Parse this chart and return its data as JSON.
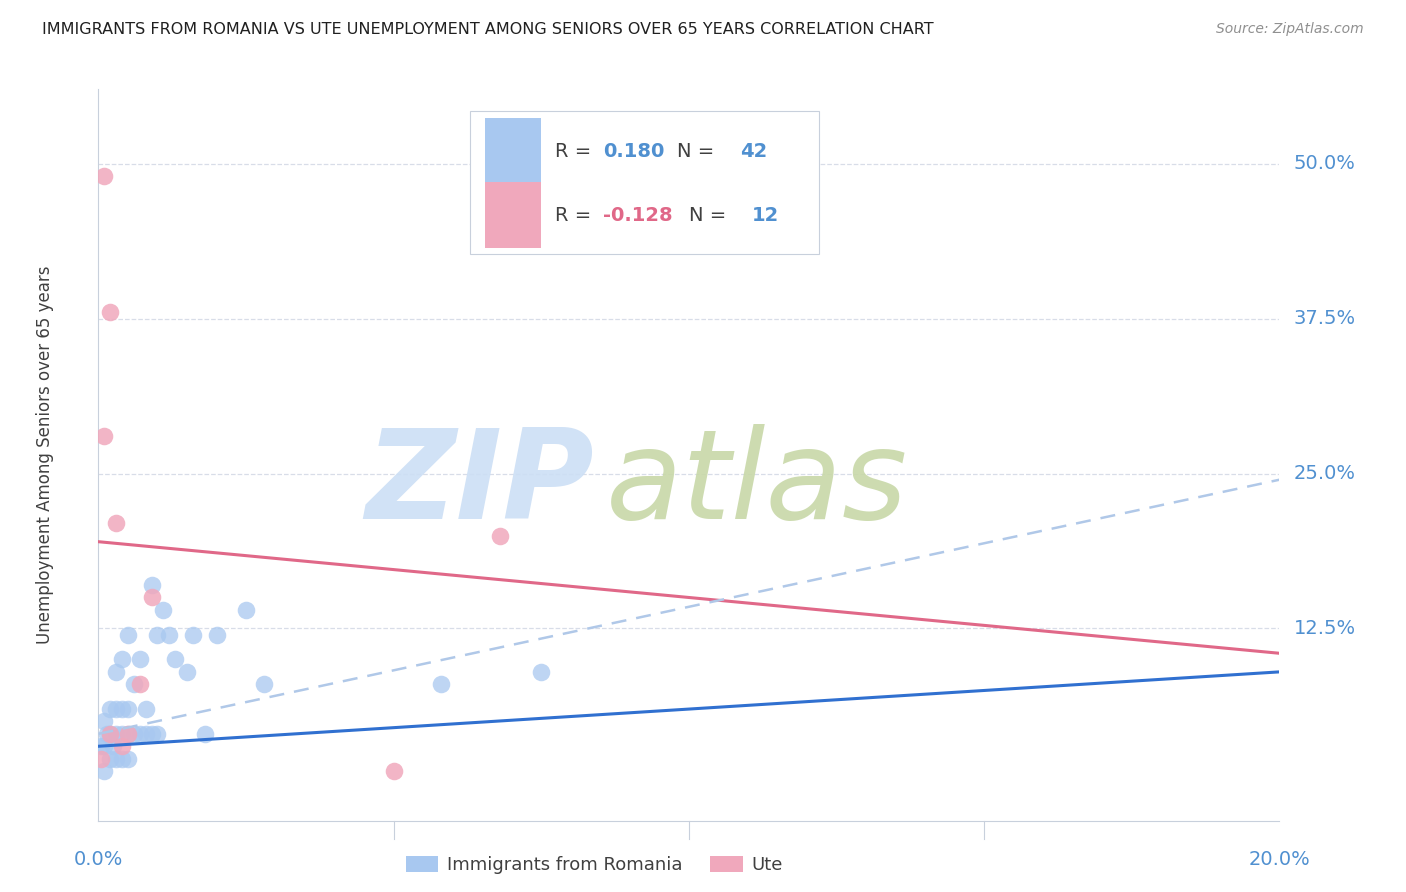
{
  "title": "IMMIGRANTS FROM ROMANIA VS UTE UNEMPLOYMENT AMONG SENIORS OVER 65 YEARS CORRELATION CHART",
  "source": "Source: ZipAtlas.com",
  "ylabel": "Unemployment Among Seniors over 65 years",
  "ytick_labels": [
    "50.0%",
    "37.5%",
    "25.0%",
    "12.5%"
  ],
  "ytick_values": [
    0.5,
    0.375,
    0.25,
    0.125
  ],
  "xmin": 0.0,
  "xmax": 0.2,
  "ymin": -0.03,
  "ymax": 0.56,
  "legend_romania_R": "0.180",
  "legend_romania_N": "42",
  "legend_ute_R": "-0.128",
  "legend_ute_N": "12",
  "color_romania": "#a8c8f0",
  "color_ute": "#f0a8bc",
  "color_romania_line": "#3070d0",
  "color_ute_line": "#e06888",
  "color_trendline_dashed": "#b0c8e8",
  "color_axis_labels": "#5090d0",
  "color_title": "#202020",
  "color_grid": "#d8dde8",
  "romania_scatter_x": [
    0.0005,
    0.001,
    0.001,
    0.001,
    0.0015,
    0.002,
    0.002,
    0.002,
    0.0025,
    0.003,
    0.003,
    0.003,
    0.003,
    0.004,
    0.004,
    0.004,
    0.004,
    0.005,
    0.005,
    0.005,
    0.005,
    0.006,
    0.006,
    0.007,
    0.007,
    0.008,
    0.008,
    0.009,
    0.009,
    0.01,
    0.01,
    0.011,
    0.012,
    0.013,
    0.015,
    0.016,
    0.018,
    0.02,
    0.025,
    0.028,
    0.058,
    0.075
  ],
  "romania_scatter_y": [
    0.03,
    0.01,
    0.03,
    0.05,
    0.04,
    0.02,
    0.04,
    0.06,
    0.03,
    0.02,
    0.04,
    0.06,
    0.09,
    0.02,
    0.04,
    0.06,
    0.1,
    0.02,
    0.04,
    0.06,
    0.12,
    0.04,
    0.08,
    0.04,
    0.1,
    0.04,
    0.06,
    0.04,
    0.16,
    0.04,
    0.12,
    0.14,
    0.12,
    0.1,
    0.09,
    0.12,
    0.04,
    0.12,
    0.14,
    0.08,
    0.08,
    0.09
  ],
  "ute_scatter_x": [
    0.0005,
    0.001,
    0.001,
    0.002,
    0.002,
    0.003,
    0.004,
    0.005,
    0.007,
    0.009,
    0.05,
    0.068
  ],
  "ute_scatter_y": [
    0.02,
    0.49,
    0.28,
    0.38,
    0.04,
    0.21,
    0.03,
    0.04,
    0.08,
    0.15,
    0.01,
    0.2
  ],
  "romania_trend_x": [
    0.0,
    0.2
  ],
  "romania_trend_y": [
    0.03,
    0.09
  ],
  "ute_trend_x": [
    0.0,
    0.2
  ],
  "ute_trend_y": [
    0.195,
    0.105
  ],
  "dashed_trend_x": [
    0.0,
    0.2
  ],
  "dashed_trend_y": [
    0.04,
    0.245
  ]
}
